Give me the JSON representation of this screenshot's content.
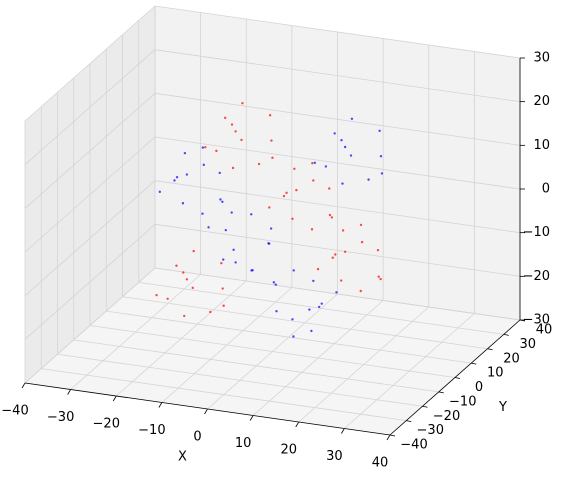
{
  "chart_data": {
    "type": "scatter3d",
    "xlabel": "X",
    "ylabel": "Y",
    "xlim": [
      -40,
      40
    ],
    "ylim": [
      -40,
      40
    ],
    "zlim": [
      -30,
      30
    ],
    "xticks": [
      {
        "value": -40,
        "label": "−40"
      },
      {
        "value": -30,
        "label": "−30"
      },
      {
        "value": -20,
        "label": "−20"
      },
      {
        "value": -10,
        "label": "−10"
      },
      0,
      10,
      20,
      30,
      40
    ],
    "yticks": [
      {
        "value": -40,
        "label": "−40"
      },
      {
        "value": -30,
        "label": "−30"
      },
      {
        "value": -20,
        "label": "−20"
      },
      {
        "value": -10,
        "label": "−10"
      },
      0,
      10,
      20,
      30,
      40
    ],
    "zticks": [
      {
        "value": -30,
        "label": "−30"
      },
      {
        "value": -20,
        "label": "−20"
      },
      {
        "value": -10,
        "label": "−10"
      },
      0,
      10,
      20,
      30
    ],
    "grid": true,
    "series": [
      {
        "color": "#0000ff",
        "x": [
          -9,
          -17,
          -6,
          -14,
          -11,
          -19,
          -8,
          -15,
          -12,
          -5,
          -16,
          -10,
          9,
          17,
          6,
          14,
          11,
          19,
          8,
          15,
          12,
          5,
          16,
          10,
          9,
          17,
          6,
          14,
          11,
          19,
          8,
          15,
          12,
          5,
          16,
          10,
          -9,
          -17,
          -6,
          -14,
          -11,
          -19,
          -8,
          -15,
          -12,
          -5,
          -16,
          -10
        ],
        "y": [
          -17,
          -11,
          -14,
          -21,
          -12,
          -16,
          -10,
          -13,
          -19,
          -18,
          -9,
          -15,
          -13,
          -19,
          -16,
          -9,
          -18,
          -14,
          -20,
          -17,
          -11,
          -12,
          -21,
          -15,
          13,
          19,
          16,
          9,
          18,
          14,
          20,
          17,
          11,
          12,
          21,
          15,
          13,
          19,
          16,
          9,
          18,
          14,
          20,
          17,
          11,
          12,
          21,
          15
        ],
        "z": [
          17,
          11,
          8,
          14,
          19,
          9,
          13,
          6,
          15,
          10,
          16,
          5,
          -17,
          -11,
          -8,
          -14,
          -19,
          -9,
          -13,
          -6,
          -15,
          -10,
          -16,
          -5,
          17,
          11,
          8,
          14,
          19,
          9,
          13,
          6,
          15,
          10,
          16,
          5,
          -17,
          -11,
          -8,
          -14,
          -19,
          -9,
          -13,
          -6,
          -15,
          -10,
          -16,
          -5
        ]
      },
      {
        "color": "#ff0000",
        "x": [
          15,
          7,
          18,
          10,
          13,
          5,
          16,
          9,
          12,
          19,
          8,
          14,
          -15,
          -7,
          -18,
          -10,
          -13,
          -5,
          -16,
          -9,
          -12,
          -19,
          -8,
          -14,
          -15,
          -7,
          -18,
          -10,
          -13,
          -5,
          -16,
          -9,
          -12,
          -19,
          -8,
          -14,
          15,
          7,
          18,
          10,
          13,
          5,
          16,
          9,
          12,
          19,
          8,
          14
        ],
        "y": [
          -17,
          -11,
          -14,
          -21,
          -12,
          -16,
          -10,
          -13,
          -19,
          -18,
          -9,
          -15,
          -17,
          -11,
          -14,
          -21,
          -12,
          -16,
          -10,
          -13,
          -19,
          -18,
          -9,
          -15,
          13,
          19,
          16,
          9,
          18,
          14,
          20,
          17,
          11,
          12,
          21,
          15,
          13,
          19,
          16,
          9,
          18,
          14,
          20,
          17,
          11,
          12,
          21,
          15
        ],
        "z": [
          17,
          11,
          8,
          14,
          19,
          9,
          13,
          6,
          15,
          10,
          16,
          5,
          -7,
          -13,
          -16,
          -10,
          -5,
          -15,
          -11,
          -18,
          -9,
          -14,
          -8,
          -19,
          17,
          11,
          8,
          14,
          19,
          9,
          13,
          6,
          15,
          10,
          16,
          5,
          -7,
          -13,
          -16,
          -10,
          -5,
          -15,
          -11,
          -18,
          -9,
          -14,
          -8,
          -19
        ]
      }
    ]
  }
}
